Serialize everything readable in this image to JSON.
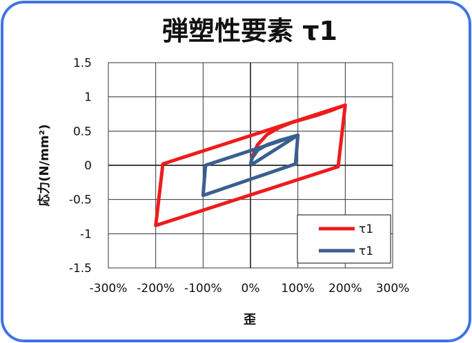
{
  "chart_data": {
    "type": "line",
    "title": "弾塑性要素 τ1",
    "xlabel": "歪",
    "ylabel": "応力(N/mm²)",
    "xlim": [
      -3,
      3
    ],
    "ylim": [
      -1.5,
      1.5
    ],
    "xticks": [
      "-300%",
      "-200%",
      "-100%",
      "0%",
      "100%",
      "200%",
      "300%"
    ],
    "xtick_values": [
      -3,
      -2,
      -1,
      0,
      1,
      2,
      3
    ],
    "yticks": [
      "1.5",
      "1",
      "0.5",
      "0",
      "-0.5",
      "-1",
      "-1.5"
    ],
    "ytick_values": [
      1.5,
      1,
      0.5,
      0,
      -0.5,
      -1,
      -1.5
    ],
    "grid": true,
    "legend_position": "bottom-right",
    "series": [
      {
        "name": "τ1",
        "color": "#ee1c1c",
        "x": [
          0,
          0.03,
          0.15,
          0.35,
          0.6,
          0.85,
          1.1,
          1.4,
          1.7,
          2.0,
          1.85,
          -2.0,
          -1.85,
          2.0
        ],
        "y": [
          0,
          0.12,
          0.3,
          0.45,
          0.55,
          0.62,
          0.67,
          0.73,
          0.8,
          0.88,
          -0.02,
          -0.88,
          0.02,
          0.88
        ]
      },
      {
        "name": "τ1",
        "color": "#3a5f8e",
        "x": [
          0,
          0.03,
          0.15,
          0.35,
          0.6,
          1.0,
          0.95,
          -1.0,
          -0.95,
          1.0,
          0.0
        ],
        "y": [
          0,
          0.1,
          0.22,
          0.3,
          0.36,
          0.44,
          0.02,
          -0.44,
          0.0,
          0.44,
          0.0
        ]
      }
    ]
  }
}
